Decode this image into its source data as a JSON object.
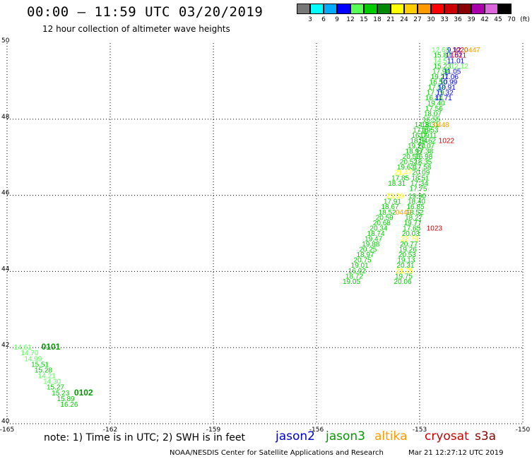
{
  "header": {
    "title": "00:00 — 11:59 UTC 03/20/2019",
    "subtitle": "12 hour collection of altimeter wave heights"
  },
  "colorbar": {
    "labels": [
      "3",
      "6",
      "9",
      "12",
      "15",
      "18",
      "21",
      "24",
      "27",
      "30",
      "33",
      "36",
      "39",
      "42",
      "45",
      "70",
      "(ft)"
    ],
    "colors": [
      "#777777",
      "#00ffff",
      "#00aaff",
      "#0000ff",
      "#55ff55",
      "#00cc00",
      "#008800",
      "#ffff00",
      "#ffcc00",
      "#ff9900",
      "#ff0000",
      "#cc0000",
      "#880000",
      "#aa00aa",
      "#dd66dd",
      "#000000"
    ]
  },
  "satellite_colors": {
    "jason2": "#0000cc",
    "jason3": "#009900",
    "altika": "#ff9900",
    "cryosat": "#cc0000",
    "s3a": "#880000"
  },
  "chart_data": {
    "type": "scatter",
    "xlim": [
      -165,
      -150
    ],
    "ylim": [
      40,
      50
    ],
    "x_ticks": [
      "-165",
      "-162",
      "-159",
      "-156",
      "-153",
      "-150"
    ],
    "y_ticks": [
      "40",
      "42",
      "44",
      "46",
      "48",
      "50"
    ],
    "grid": true,
    "points": [
      {
        "x": -152.65,
        "y": 49.83,
        "v": "12.68",
        "c": "#55ff55"
      },
      {
        "x": -152.2,
        "y": 49.83,
        "v": "9.12",
        "c": "#0000ff"
      },
      {
        "x": -152.05,
        "y": 49.83,
        "v": "1020",
        "c": "#cc0000"
      },
      {
        "x": -151.7,
        "y": 49.83,
        "v": "0447",
        "c": "#ff9900"
      },
      {
        "x": -152.6,
        "y": 49.69,
        "v": "15.87",
        "c": "#00cc00"
      },
      {
        "x": -152.25,
        "y": 49.69,
        "v": "11.51",
        "c": "#0000ff"
      },
      {
        "x": -152.1,
        "y": 49.69,
        "v": "1021",
        "c": "#cc0000"
      },
      {
        "x": -152.6,
        "y": 49.55,
        "v": "14.51",
        "c": "#55ff55"
      },
      {
        "x": -152.2,
        "y": 49.55,
        "v": "11.01",
        "c": "#0000ff"
      },
      {
        "x": -152.6,
        "y": 49.41,
        "v": "15.23",
        "c": "#00cc00"
      },
      {
        "x": -152.1,
        "y": 49.41,
        "v": "12.12",
        "c": "#55ff55"
      },
      {
        "x": -152.63,
        "y": 49.27,
        "v": "17.98",
        "c": "#00cc00"
      },
      {
        "x": -152.3,
        "y": 49.27,
        "v": "11.05",
        "c": "#0000ff"
      },
      {
        "x": -152.68,
        "y": 49.13,
        "v": "19.27",
        "c": "#00cc00"
      },
      {
        "x": -152.37,
        "y": 49.13,
        "v": "11.06",
        "c": "#0000ff"
      },
      {
        "x": -152.72,
        "y": 48.99,
        "v": "16.50",
        "c": "#00cc00"
      },
      {
        "x": -152.42,
        "y": 48.99,
        "v": "10.99",
        "c": "#0000ff"
      },
      {
        "x": -152.76,
        "y": 48.85,
        "v": "17.58",
        "c": "#00cc00"
      },
      {
        "x": -152.47,
        "y": 48.85,
        "v": "10.91",
        "c": "#0000ff"
      },
      {
        "x": -152.8,
        "y": 48.71,
        "v": "17.79",
        "c": "#00cc00"
      },
      {
        "x": -152.52,
        "y": 48.71,
        "v": "11.32",
        "c": "#0000ff"
      },
      {
        "x": -152.84,
        "y": 48.57,
        "v": "16.44",
        "c": "#00cc00"
      },
      {
        "x": -152.56,
        "y": 48.57,
        "v": "11.71",
        "c": "#0000ff"
      },
      {
        "x": -152.78,
        "y": 48.43,
        "v": "19.40",
        "c": "#00cc00"
      },
      {
        "x": -152.84,
        "y": 48.29,
        "v": "17.56",
        "c": "#00cc00"
      },
      {
        "x": -152.88,
        "y": 48.15,
        "v": "18.07",
        "c": "#00cc00"
      },
      {
        "x": -152.92,
        "y": 48.01,
        "v": "16.55",
        "c": "#00cc00"
      },
      {
        "x": -153.15,
        "y": 47.87,
        "v": "14.31",
        "c": "#00cc00"
      },
      {
        "x": -152.95,
        "y": 47.87,
        "v": "18.31",
        "c": "#00cc00"
      },
      {
        "x": -152.6,
        "y": 47.87,
        "v": "0448",
        "c": "#ff9900"
      },
      {
        "x": -153.2,
        "y": 47.73,
        "v": "17.19",
        "c": "#00cc00"
      },
      {
        "x": -152.97,
        "y": 47.73,
        "v": "16.53",
        "c": "#00cc00"
      },
      {
        "x": -153.24,
        "y": 47.59,
        "v": "16.09",
        "c": "#00cc00"
      },
      {
        "x": -153.0,
        "y": 47.59,
        "v": "17.11",
        "c": "#00cc00"
      },
      {
        "x": -153.28,
        "y": 47.45,
        "v": "18.54",
        "c": "#00cc00"
      },
      {
        "x": -153.04,
        "y": 47.45,
        "v": "18.62",
        "c": "#00cc00"
      },
      {
        "x": -152.45,
        "y": 47.45,
        "v": "1022",
        "c": "#cc0000"
      },
      {
        "x": -153.35,
        "y": 47.31,
        "v": "19.20",
        "c": "#00cc00"
      },
      {
        "x": -153.08,
        "y": 47.31,
        "v": "17.07",
        "c": "#00cc00"
      },
      {
        "x": -153.42,
        "y": 47.17,
        "v": "18.97",
        "c": "#00cc00"
      },
      {
        "x": -153.12,
        "y": 47.17,
        "v": "17.38",
        "c": "#00cc00"
      },
      {
        "x": -153.5,
        "y": 47.03,
        "v": "20.56",
        "c": "#00cc00"
      },
      {
        "x": -153.14,
        "y": 47.03,
        "v": "16.98",
        "c": "#00cc00"
      },
      {
        "x": -153.58,
        "y": 46.89,
        "v": "20.52",
        "c": "#00cc00"
      },
      {
        "x": -153.16,
        "y": 46.89,
        "v": "18.35",
        "c": "#00cc00"
      },
      {
        "x": -153.66,
        "y": 46.75,
        "v": "19.63",
        "c": "#00cc00"
      },
      {
        "x": -153.18,
        "y": 46.75,
        "v": "17.58",
        "c": "#00cc00"
      },
      {
        "x": -153.74,
        "y": 46.61,
        "v": "21.47",
        "c": "#ffff00"
      },
      {
        "x": -153.22,
        "y": 46.61,
        "v": "20.09",
        "c": "#00cc00"
      },
      {
        "x": -153.82,
        "y": 46.47,
        "v": "17.85",
        "c": "#00cc00"
      },
      {
        "x": -153.24,
        "y": 46.47,
        "v": "18.51",
        "c": "#00cc00"
      },
      {
        "x": -153.92,
        "y": 46.33,
        "v": "18.31",
        "c": "#00cc00"
      },
      {
        "x": -153.27,
        "y": 46.33,
        "v": "17.34",
        "c": "#00cc00"
      },
      {
        "x": -153.3,
        "y": 46.19,
        "v": "17.75",
        "c": "#00cc00"
      },
      {
        "x": -153.98,
        "y": 45.99,
        "v": "23.09",
        "c": "#ffff00"
      },
      {
        "x": -153.33,
        "y": 45.99,
        "v": "19.90",
        "c": "#00cc00"
      },
      {
        "x": -154.05,
        "y": 45.85,
        "v": "17.91",
        "c": "#00cc00"
      },
      {
        "x": -153.35,
        "y": 45.85,
        "v": "18.40",
        "c": "#00cc00"
      },
      {
        "x": -154.12,
        "y": 45.71,
        "v": "18.67",
        "c": "#00cc00"
      },
      {
        "x": -153.38,
        "y": 45.71,
        "v": "16.85",
        "c": "#00cc00"
      },
      {
        "x": -154.2,
        "y": 45.57,
        "v": "18.52",
        "c": "#00cc00"
      },
      {
        "x": -153.7,
        "y": 45.57,
        "v": "0449",
        "c": "#ff9900"
      },
      {
        "x": -153.4,
        "y": 45.57,
        "v": "18.52",
        "c": "#00cc00"
      },
      {
        "x": -154.28,
        "y": 45.43,
        "v": "20.59",
        "c": "#00cc00"
      },
      {
        "x": -153.43,
        "y": 45.43,
        "v": "18.27",
        "c": "#00cc00"
      },
      {
        "x": -154.36,
        "y": 45.29,
        "v": "20.68",
        "c": "#00cc00"
      },
      {
        "x": -153.46,
        "y": 45.29,
        "v": "19.77",
        "c": "#00cc00"
      },
      {
        "x": -154.45,
        "y": 45.15,
        "v": "20.34",
        "c": "#00cc00"
      },
      {
        "x": -153.49,
        "y": 45.15,
        "v": "17.65",
        "c": "#00cc00"
      },
      {
        "x": -152.8,
        "y": 45.15,
        "v": "1023",
        "c": "#cc0000"
      },
      {
        "x": -154.53,
        "y": 45.01,
        "v": "18.74",
        "c": "#00cc00"
      },
      {
        "x": -153.52,
        "y": 45.01,
        "v": "20.03",
        "c": "#00cc00"
      },
      {
        "x": -154.6,
        "y": 44.87,
        "v": "19.47",
        "c": "#00cc00"
      },
      {
        "x": -153.55,
        "y": 44.87,
        "v": "22.79",
        "c": "#ffff00"
      },
      {
        "x": -154.68,
        "y": 44.73,
        "v": "19.88",
        "c": "#00cc00"
      },
      {
        "x": -153.57,
        "y": 44.73,
        "v": "20.77",
        "c": "#00cc00"
      },
      {
        "x": -154.76,
        "y": 44.59,
        "v": "20.25",
        "c": "#00cc00"
      },
      {
        "x": -153.6,
        "y": 44.59,
        "v": "19.26",
        "c": "#00cc00"
      },
      {
        "x": -154.84,
        "y": 44.45,
        "v": "18.97",
        "c": "#00cc00"
      },
      {
        "x": -153.62,
        "y": 44.45,
        "v": "20.53",
        "c": "#00cc00"
      },
      {
        "x": -154.92,
        "y": 44.31,
        "v": "20.75",
        "c": "#00cc00"
      },
      {
        "x": -153.65,
        "y": 44.31,
        "v": "19.13",
        "c": "#00cc00"
      },
      {
        "x": -155.0,
        "y": 44.17,
        "v": "19.01",
        "c": "#00cc00"
      },
      {
        "x": -153.67,
        "y": 44.17,
        "v": "20.31",
        "c": "#00cc00"
      },
      {
        "x": -155.08,
        "y": 44.03,
        "v": "16.92",
        "c": "#00cc00"
      },
      {
        "x": -153.7,
        "y": 44.03,
        "v": "21.75",
        "c": "#ffff00"
      },
      {
        "x": -155.16,
        "y": 43.89,
        "v": "18.72",
        "c": "#00cc00"
      },
      {
        "x": -153.72,
        "y": 43.89,
        "v": "19.75",
        "c": "#00cc00"
      },
      {
        "x": -155.24,
        "y": 43.75,
        "v": "19.05",
        "c": "#00cc00"
      },
      {
        "x": -153.75,
        "y": 43.75,
        "v": "20.06",
        "c": "#00cc00"
      },
      {
        "x": -164.8,
        "y": 42.02,
        "v": "14.61",
        "c": "#55ff55"
      },
      {
        "x": -164.6,
        "y": 41.87,
        "v": "14.70",
        "c": "#55ff55"
      },
      {
        "x": -164.5,
        "y": 41.72,
        "v": "14.99",
        "c": "#55ff55"
      },
      {
        "x": -164.3,
        "y": 41.57,
        "v": "15.51",
        "c": "#00cc00"
      },
      {
        "x": -164.2,
        "y": 41.42,
        "v": "15.28",
        "c": "#00cc00"
      },
      {
        "x": -164.1,
        "y": 41.27,
        "v": "14.21",
        "c": "#55ff55"
      },
      {
        "x": -163.95,
        "y": 41.12,
        "v": "14.30",
        "c": "#55ff55"
      },
      {
        "x": -163.85,
        "y": 40.97,
        "v": "15.27",
        "c": "#00cc00"
      },
      {
        "x": -163.7,
        "y": 40.82,
        "v": "15.23",
        "c": "#00cc00"
      },
      {
        "x": -163.55,
        "y": 40.67,
        "v": "15.89",
        "c": "#00cc00"
      },
      {
        "x": -163.45,
        "y": 40.52,
        "v": "16.26",
        "c": "#00cc00"
      }
    ],
    "pass_labels": [
      {
        "x": -164.0,
        "y": 42.02,
        "v": "0101",
        "c": "#009900"
      },
      {
        "x": -163.05,
        "y": 40.82,
        "v": "0102",
        "c": "#009900"
      }
    ]
  },
  "footer": {
    "note": "note: 1) Time is in UTC; 2) SWH is in feet",
    "legend": [
      "jason2",
      "jason3",
      "altika",
      "cryosat",
      "s3a"
    ],
    "credit": "NOAA/NESDIS Center for Satellite Applications and Research",
    "timestamp": "Mar 21 12:27:12 UTC 2019"
  }
}
